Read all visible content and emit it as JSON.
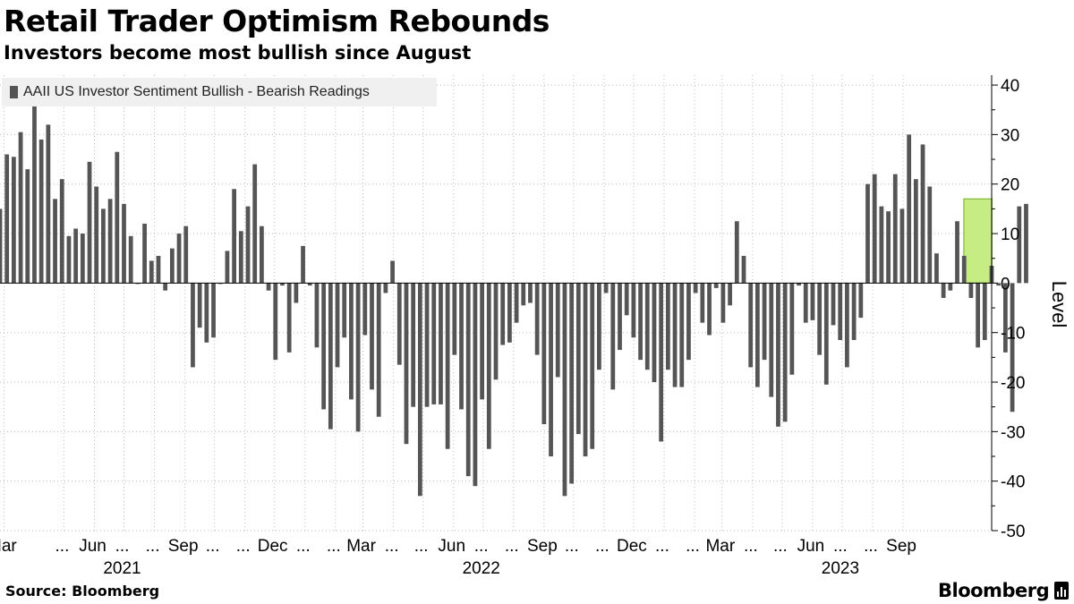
{
  "title": "Retail Trader Optimism Rebounds",
  "subtitle": "Investors become most bullish since August",
  "source": "Source: Bloomberg",
  "brand": "Bloomberg",
  "colors": {
    "bar": "#555555",
    "highlight": "#c6ec84",
    "highlight_border": "#7fb92f",
    "grid": "#bbbbbb"
  },
  "chart_data": {
    "type": "bar",
    "title": "Retail Trader Optimism Rebounds",
    "legend": [
      "AAII US Investor Sentiment Bullish - Bearish Readings"
    ],
    "ylabel": "Level",
    "ylim": [
      -50,
      42
    ],
    "yticks": [
      40,
      30,
      20,
      10,
      0,
      -10,
      -20,
      -30,
      -40,
      -50
    ],
    "x_start": "2021-02-25",
    "x_end": "2023-11-30",
    "frequency": "weekly",
    "highlight": {
      "from": "2023-11-09",
      "to": "2023-11-23"
    },
    "month_ticks": [
      {
        "label": "Mar",
        "date": "2021-03-01"
      },
      {
        "label": "...",
        "date": "2021-05-01"
      },
      {
        "label": "Jun",
        "date": "2021-06-01"
      },
      {
        "label": "...",
        "date": "2021-07-01"
      },
      {
        "label": "...",
        "date": "2021-08-01"
      },
      {
        "label": "Sep",
        "date": "2021-09-01"
      },
      {
        "label": "...",
        "date": "2021-10-01"
      },
      {
        "label": "...",
        "date": "2021-11-01"
      },
      {
        "label": "Dec",
        "date": "2021-12-01"
      },
      {
        "label": "...",
        "date": "2022-01-01"
      },
      {
        "label": "...",
        "date": "2022-02-01"
      },
      {
        "label": "Mar",
        "date": "2022-03-01"
      },
      {
        "label": "...",
        "date": "2022-04-01"
      },
      {
        "label": "...",
        "date": "2022-05-01"
      },
      {
        "label": "Jun",
        "date": "2022-06-01"
      },
      {
        "label": "...",
        "date": "2022-07-01"
      },
      {
        "label": "...",
        "date": "2022-08-01"
      },
      {
        "label": "Sep",
        "date": "2022-09-01"
      },
      {
        "label": "...",
        "date": "2022-10-01"
      },
      {
        "label": "...",
        "date": "2022-11-01"
      },
      {
        "label": "Dec",
        "date": "2022-12-01"
      },
      {
        "label": "...",
        "date": "2023-01-01"
      },
      {
        "label": "...",
        "date": "2023-02-01"
      },
      {
        "label": "Mar",
        "date": "2023-03-01"
      },
      {
        "label": "...",
        "date": "2023-04-01"
      },
      {
        "label": "...",
        "date": "2023-05-01"
      },
      {
        "label": "Jun",
        "date": "2023-06-01"
      },
      {
        "label": "...",
        "date": "2023-07-01"
      },
      {
        "label": "...",
        "date": "2023-08-01"
      },
      {
        "label": "Sep",
        "date": "2023-09-01"
      }
    ],
    "year_labels": [
      {
        "label": "2021",
        "date": "2021-07-01"
      },
      {
        "label": "2022",
        "date": "2022-07-01"
      },
      {
        "label": "2023",
        "date": "2023-07-01"
      }
    ],
    "values": [
      15,
      26,
      25.5,
      30.5,
      23,
      36.5,
      29,
      32,
      17,
      21,
      9.5,
      11,
      10,
      24.5,
      19.5,
      15,
      17,
      26.5,
      16,
      9.5,
      0,
      12,
      4.5,
      5.5,
      -1.5,
      7,
      10,
      11.5,
      -17,
      -9,
      -12,
      -11,
      0,
      6.5,
      19,
      10.5,
      15.5,
      24,
      11.5,
      -1.5,
      -15.5,
      -0.5,
      -14,
      -4,
      7.5,
      -0.5,
      -13,
      -25.5,
      -29.5,
      -17,
      -11,
      -23.5,
      -30,
      -10.5,
      -21.5,
      -27,
      -2,
      4.5,
      -16.5,
      -32.5,
      -25,
      -43,
      -25,
      -24.5,
      -24.5,
      -33.5,
      -14.5,
      -25.5,
      -39,
      -41,
      -23.5,
      -33.5,
      -19.5,
      -12.5,
      -12,
      -8,
      -4.5,
      -4,
      -14.5,
      -28.5,
      -35,
      -19,
      -43,
      -40.5,
      -30.5,
      -35,
      -33.5,
      -17.5,
      -2,
      -21.5,
      -13.5,
      -6.5,
      -11,
      -15.5,
      -17.5,
      -20,
      -32,
      -17.5,
      -21,
      -21,
      -15.5,
      -2,
      -8,
      -10.5,
      -1,
      -8,
      -4.5,
      12.5,
      5.5,
      -17,
      -21,
      -15.5,
      -23,
      -29,
      -28,
      -18.5,
      -0.5,
      -8,
      -7.5,
      -14.5,
      -20.5,
      -8.5,
      -11.5,
      -17,
      -11.5,
      -7,
      20,
      22,
      15.5,
      14.5,
      22,
      15,
      30,
      21,
      28,
      19.5,
      6,
      -3,
      -1.5,
      12.5,
      5.5,
      -3,
      -13,
      -11.5,
      3.5,
      -0.5,
      -14,
      -26,
      15.5,
      16
    ]
  }
}
